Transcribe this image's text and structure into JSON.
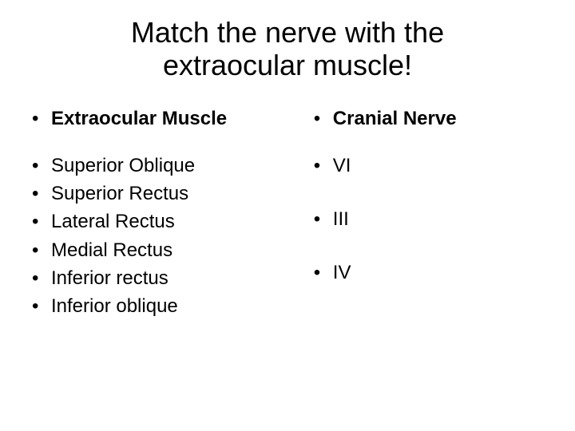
{
  "title": "Match the nerve with the extraocular muscle!",
  "left": {
    "header": "Extraocular Muscle",
    "items": [
      "Superior Oblique",
      "Superior Rectus",
      "Lateral Rectus",
      "Medial Rectus",
      "Inferior rectus",
      "Inferior oblique"
    ]
  },
  "right": {
    "header": "Cranial Nerve",
    "items": [
      "VI",
      "III",
      "IV"
    ]
  },
  "bullet_char": "•",
  "colors": {
    "background": "#ffffff",
    "text": "#000000"
  },
  "fonts": {
    "title_size": 36,
    "body_size": 24,
    "family": "Arial"
  }
}
